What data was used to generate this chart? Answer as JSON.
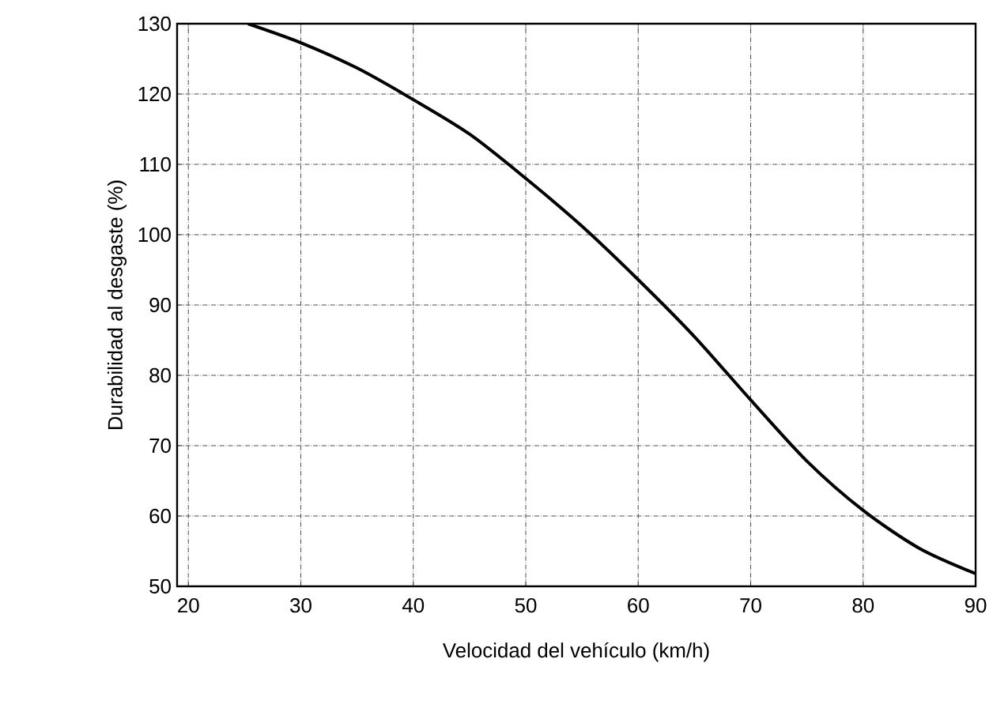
{
  "chart_data": {
    "type": "line",
    "xlabel": "Velocidad del vehículo (km/h)",
    "ylabel": "Durabilidad al desgaste (%)",
    "x": [
      25.3,
      30,
      35,
      40,
      45,
      50,
      55,
      60,
      65,
      70,
      75,
      80,
      85,
      90
    ],
    "series": [
      {
        "color": "#000000",
        "values": [
          130,
          127.3,
          123.7,
          119.2,
          114.3,
          108,
          101.2,
          93.6,
          85.5,
          76.5,
          67.8,
          60.8,
          55.4,
          51.8
        ]
      }
    ],
    "xlim": [
      19,
      90
    ],
    "xticks": [
      20,
      30,
      40,
      50,
      60,
      70,
      80,
      90
    ],
    "ylim": [
      50,
      130
    ],
    "yticks": [
      50,
      60,
      70,
      80,
      90,
      100,
      110,
      120,
      130
    ],
    "grid": true,
    "marker": "none",
    "line_style": "solid"
  }
}
